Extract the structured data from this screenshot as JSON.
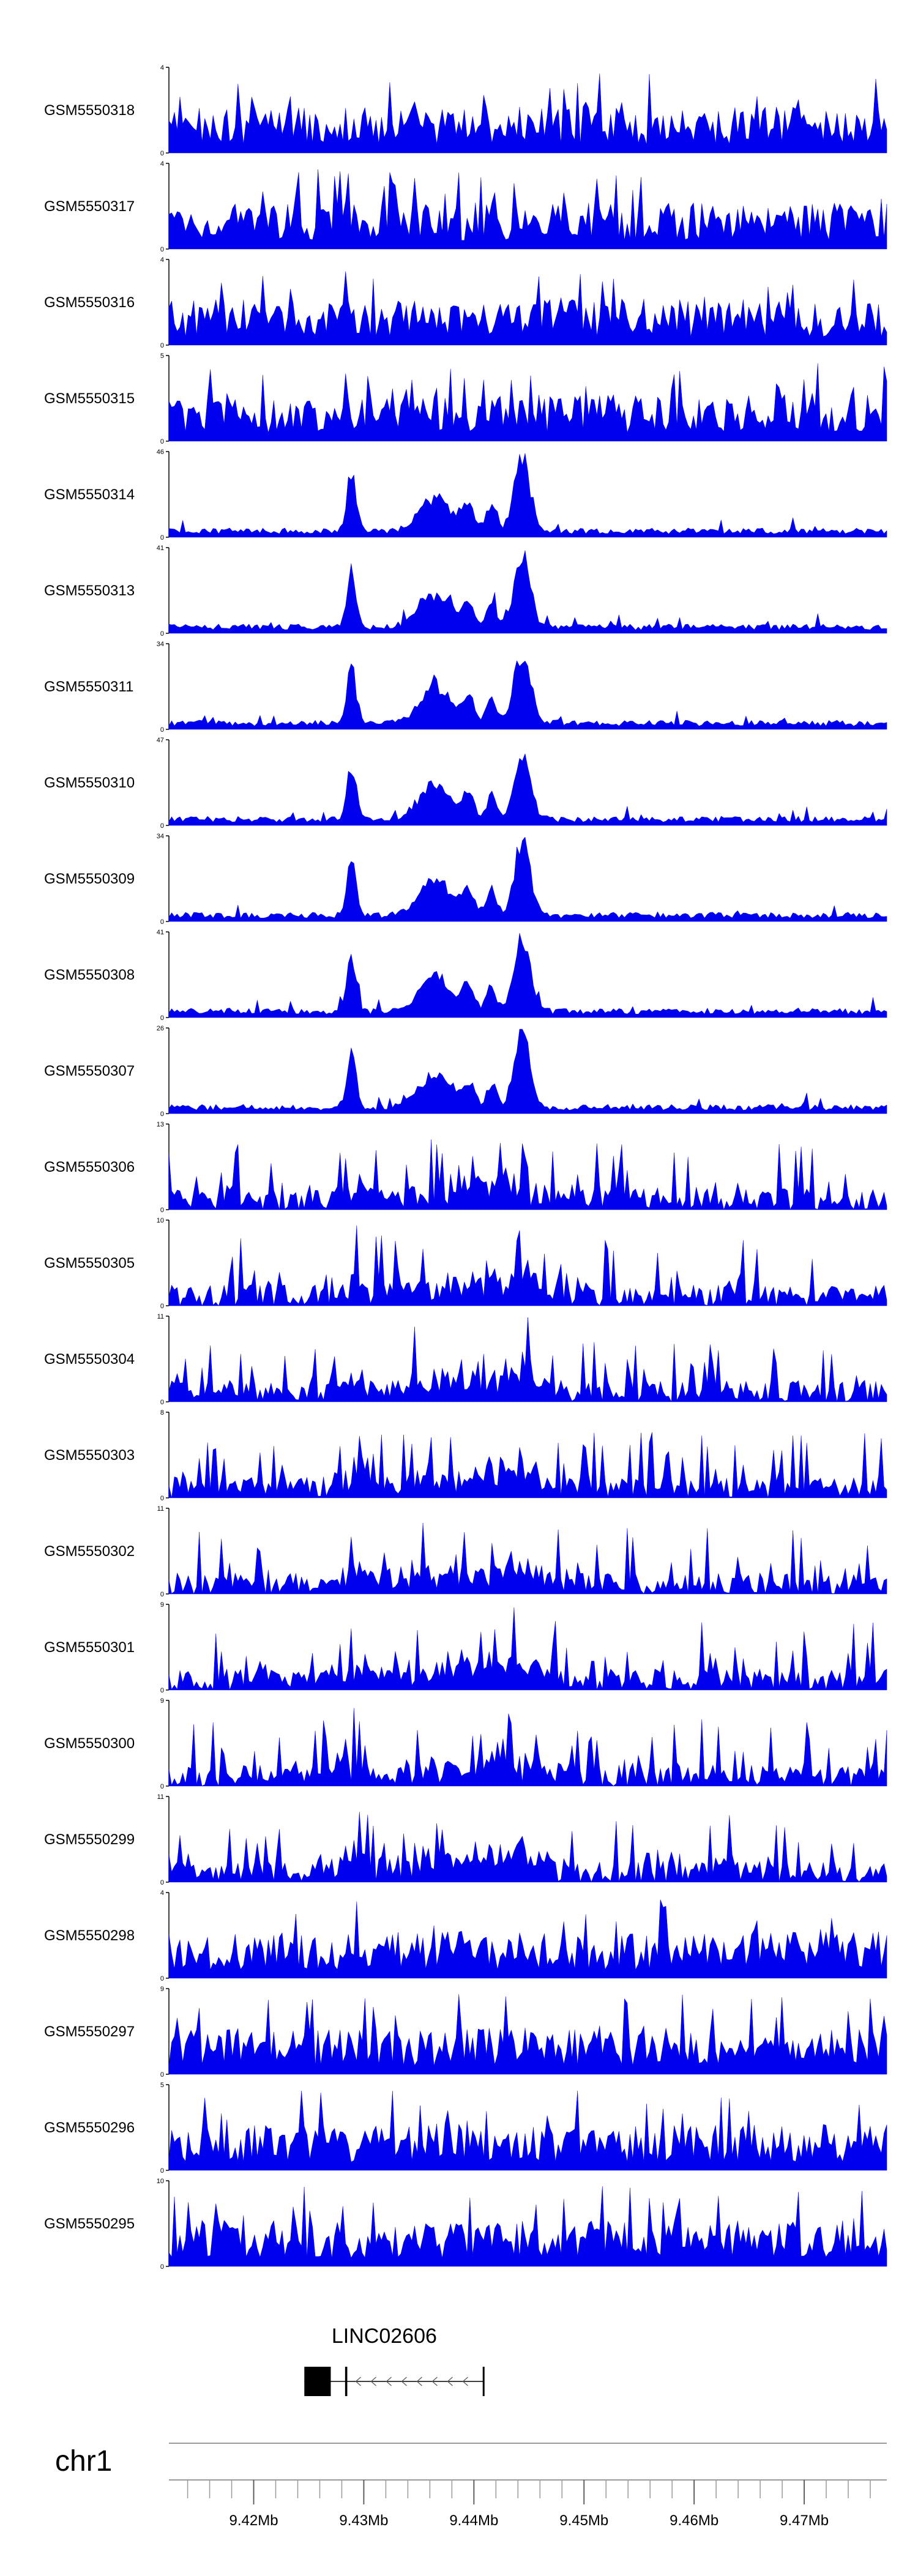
{
  "chart_data": {
    "type": "area",
    "color_fill": "#0000EE",
    "color_axis": "#000000",
    "x_range_mb": [
      9.4123,
      9.4775
    ],
    "tracks": [
      {
        "name": "GSM5550318",
        "ymax": "4",
        "ymin": "0",
        "profile": "noise"
      },
      {
        "name": "GSM5550317",
        "ymax": "4",
        "ymin": "0",
        "profile": "noise"
      },
      {
        "name": "GSM5550316",
        "ymax": "4",
        "ymin": "0",
        "profile": "noise"
      },
      {
        "name": "GSM5550315",
        "ymax": "5",
        "ymin": "0",
        "profile": "noise"
      },
      {
        "name": "GSM5550314",
        "ymax": "46",
        "ymin": "0",
        "profile": "peaks"
      },
      {
        "name": "GSM5550313",
        "ymax": "41",
        "ymin": "0",
        "profile": "peaks"
      },
      {
        "name": "GSM5550311",
        "ymax": "34",
        "ymin": "0",
        "profile": "peaks"
      },
      {
        "name": "GSM5550310",
        "ymax": "47",
        "ymin": "0",
        "profile": "peaks"
      },
      {
        "name": "GSM5550309",
        "ymax": "34",
        "ymin": "0",
        "profile": "peaks"
      },
      {
        "name": "GSM5550308",
        "ymax": "41",
        "ymin": "0",
        "profile": "peaks"
      },
      {
        "name": "GSM5550307",
        "ymax": "26",
        "ymin": "0",
        "profile": "peaks"
      },
      {
        "name": "GSM5550306",
        "ymax": "13",
        "ymin": "0",
        "profile": "mixed"
      },
      {
        "name": "GSM5550305",
        "ymax": "10",
        "ymin": "0",
        "profile": "mixed"
      },
      {
        "name": "GSM5550304",
        "ymax": "11",
        "ymin": "0",
        "profile": "mixed"
      },
      {
        "name": "GSM5550303",
        "ymax": "8",
        "ymin": "0",
        "profile": "mixed"
      },
      {
        "name": "GSM5550302",
        "ymax": "11",
        "ymin": "0",
        "profile": "mixed"
      },
      {
        "name": "GSM5550301",
        "ymax": "9",
        "ymin": "0",
        "profile": "mixed"
      },
      {
        "name": "GSM5550300",
        "ymax": "9",
        "ymin": "0",
        "profile": "mixed"
      },
      {
        "name": "GSM5550299",
        "ymax": "11",
        "ymin": "0",
        "profile": "mixed"
      },
      {
        "name": "GSM5550298",
        "ymax": "4",
        "ymin": "0",
        "profile": "noise"
      },
      {
        "name": "GSM5550297",
        "ymax": "9",
        "ymin": "0",
        "profile": "noise"
      },
      {
        "name": "GSM5550296",
        "ymax": "5",
        "ymin": "0",
        "profile": "noise"
      },
      {
        "name": "GSM5550295",
        "ymax": "10",
        "ymin": "0",
        "profile": "noise"
      }
    ],
    "gene": {
      "name": "LINC02606",
      "strand": "-",
      "start_mb": 9.4246,
      "end_mb": 9.4409,
      "exons_mb": [
        [
          9.4246,
          9.427
        ],
        [
          9.4283,
          9.4285
        ],
        [
          9.4408,
          9.4409
        ]
      ]
    },
    "chromosome": "chr1",
    "axis_ticks": [
      {
        "label": "9.42Mb",
        "mb": 9.42
      },
      {
        "label": "9.43Mb",
        "mb": 9.43
      },
      {
        "label": "9.44Mb",
        "mb": 9.44
      },
      {
        "label": "9.45Mb",
        "mb": 9.45
      },
      {
        "label": "9.46Mb",
        "mb": 9.46
      },
      {
        "label": "9.47Mb",
        "mb": 9.47
      }
    ],
    "minor_tick_step_mb": 0.002
  }
}
